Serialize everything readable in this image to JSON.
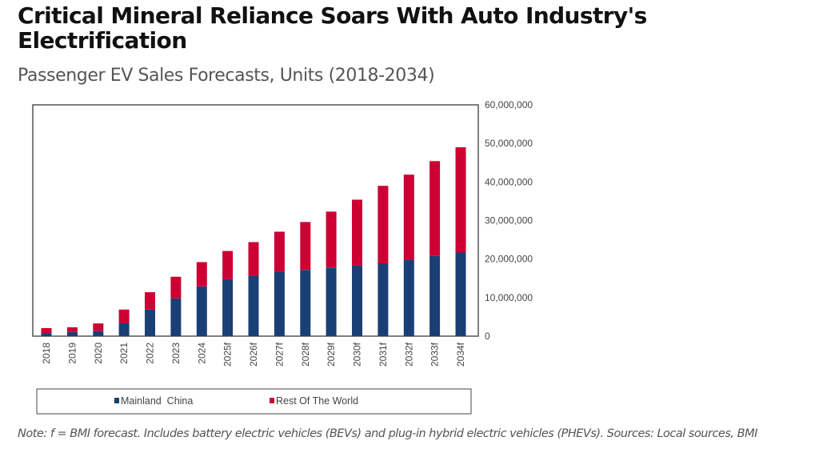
{
  "title": "Critical Mineral Reliance Soars With Auto Industry's Electrification",
  "subtitle": "Passenger EV Sales Forecasts, Units (2018-2034)",
  "note": "Note: f = BMI forecast. Includes battery electric vehicles (BEVs) and plug-in hybrid electric vehicles (PHEVs). Sources: Local sources, BMI",
  "chart_data": {
    "type": "bar",
    "stacked": true,
    "title": "Passenger EV Sales Forecasts, Units (2018-2034)",
    "xlabel": "",
    "ylabel": "",
    "categories": [
      "2018",
      "2019",
      "2020",
      "2021",
      "2022",
      "2023",
      "2024",
      "2025f",
      "2026f",
      "2027f",
      "2028f",
      "2029f",
      "2030f",
      "2031f",
      "2032f",
      "2033f",
      "2034f"
    ],
    "series": [
      {
        "name": "Mainland  China",
        "color": "#1a3f75",
        "values": [
          800000,
          1100000,
          1300000,
          3400000,
          6900000,
          9800000,
          12900000,
          14800000,
          15700000,
          16700000,
          17200000,
          17800000,
          18300000,
          18900000,
          19800000,
          20800000,
          21700000
        ]
      },
      {
        "name": "Rest Of The World",
        "color": "#cc0033",
        "values": [
          1300000,
          1200000,
          2000000,
          3500000,
          4500000,
          5600000,
          6300000,
          7300000,
          8700000,
          10400000,
          12400000,
          14500000,
          17100000,
          20100000,
          22100000,
          24600000,
          27300000
        ]
      }
    ],
    "yaxis": {
      "position": "right",
      "ylim": [
        0,
        60000000
      ],
      "ticks": [
        0,
        10000000,
        20000000,
        30000000,
        40000000,
        50000000,
        60000000
      ],
      "tick_labels": [
        "0",
        "10,000,000",
        "20,000,000",
        "30,000,000",
        "40,000,000",
        "50,000,000",
        "60,000,000"
      ]
    },
    "grid": false,
    "legend": {
      "placement": "bottom",
      "entries": [
        "Mainland  China",
        "Rest Of The World"
      ]
    }
  }
}
